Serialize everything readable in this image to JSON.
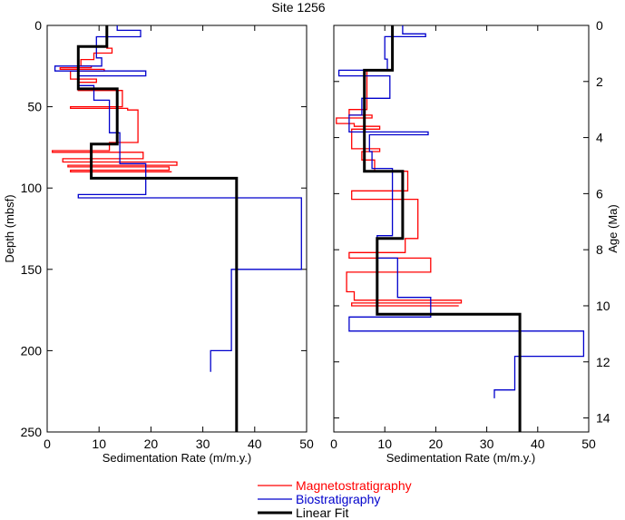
{
  "title": "Site 1256",
  "legend": [
    {
      "label": "Magnetostratigraphy",
      "color": "#ff0000"
    },
    {
      "label": "Biostratigraphy",
      "color": "#0000cc"
    },
    {
      "label": "Linear Fit",
      "color": "#000000"
    }
  ],
  "chart_data": [
    {
      "type": "line",
      "xlabel": "Sedimentation Rate (m/m.y.)",
      "ylabel": "Depth (mbsf)",
      "xlim": [
        0,
        50
      ],
      "ylim": [
        0,
        250
      ],
      "y_inverted": true,
      "xticks": [
        0,
        10,
        20,
        30,
        40,
        50
      ],
      "yticks": [
        0,
        50,
        100,
        150,
        200,
        250
      ],
      "series": [
        {
          "name": "Magnetostratigraphy",
          "color": "#ff0000",
          "points": [
            [
              11.5,
              0
            ],
            [
              11.5,
              14
            ],
            [
              12.5,
              14
            ],
            [
              12.5,
              17
            ],
            [
              9,
              17
            ],
            [
              9,
              21
            ],
            [
              6.5,
              21
            ],
            [
              6.5,
              25
            ],
            [
              8.5,
              25
            ],
            [
              8.5,
              26
            ],
            [
              2.5,
              26
            ],
            [
              2.5,
              27
            ],
            [
              11,
              27
            ],
            [
              11,
              28
            ],
            [
              4.5,
              28
            ],
            [
              4.5,
              33
            ],
            [
              9.5,
              33
            ],
            [
              9.5,
              35
            ],
            [
              6,
              35
            ],
            [
              6,
              40
            ],
            [
              14.5,
              40
            ],
            [
              14.5,
              50
            ],
            [
              4.5,
              50
            ],
            [
              4.5,
              51
            ],
            [
              15.5,
              51
            ],
            [
              15.5,
              52
            ],
            [
              17.5,
              52
            ],
            [
              17.5,
              72
            ],
            [
              12,
              72
            ],
            [
              12,
              77
            ],
            [
              1,
              77
            ],
            [
              1,
              78
            ],
            [
              18.5,
              78
            ],
            [
              18.5,
              82
            ],
            [
              3,
              82
            ],
            [
              3,
              84
            ],
            [
              25,
              84
            ],
            [
              25,
              86
            ],
            [
              4,
              86
            ],
            [
              4,
              87
            ],
            [
              23.5,
              87
            ],
            [
              23.5,
              89
            ],
            [
              4.5,
              89
            ],
            [
              4.5,
              90
            ],
            [
              24,
              90
            ]
          ]
        },
        {
          "name": "Biostratigraphy",
          "color": "#0000cc",
          "points": [
            [
              13.5,
              0
            ],
            [
              13.5,
              3
            ],
            [
              18,
              3
            ],
            [
              18,
              7
            ],
            [
              9.5,
              7
            ],
            [
              9.5,
              20
            ],
            [
              10.5,
              20
            ],
            [
              10.5,
              25
            ],
            [
              1.5,
              25
            ],
            [
              1.5,
              28
            ],
            [
              19,
              28
            ],
            [
              19,
              31
            ],
            [
              6,
              31
            ],
            [
              6,
              37
            ],
            [
              9,
              37
            ],
            [
              9,
              46
            ],
            [
              12,
              46
            ],
            [
              12,
              66
            ],
            [
              14,
              66
            ],
            [
              14,
              85
            ],
            [
              19,
              85
            ],
            [
              19,
              104
            ],
            [
              6,
              104
            ],
            [
              6,
              106
            ],
            [
              49,
              106
            ],
            [
              49,
              150
            ],
            [
              35.5,
              150
            ],
            [
              35.5,
              200
            ],
            [
              31.5,
              200
            ],
            [
              31.5,
              213
            ]
          ]
        },
        {
          "name": "Linear Fit",
          "color": "#000000",
          "points": [
            [
              11.5,
              0
            ],
            [
              11.5,
              13
            ],
            [
              6,
              13
            ],
            [
              6,
              39
            ],
            [
              13.5,
              39
            ],
            [
              13.5,
              73
            ],
            [
              8.5,
              73
            ],
            [
              8.5,
              94
            ],
            [
              36.5,
              94
            ],
            [
              36.5,
              250
            ]
          ]
        }
      ]
    },
    {
      "type": "line",
      "xlabel": "Sedimentation Rate (m/m.y.)",
      "ylabel": "Age (Ma)",
      "xlim": [
        0,
        50
      ],
      "ylim": [
        0,
        14.5
      ],
      "y_inverted": true,
      "xticks": [
        0,
        10,
        20,
        30,
        40,
        50
      ],
      "yticks": [
        0,
        2,
        4,
        6,
        8,
        10,
        12,
        14
      ],
      "series": [
        {
          "name": "Magnetostratigraphy",
          "color": "#ff0000",
          "points": [
            [
              11.5,
              0
            ],
            [
              11.5,
              1.6
            ],
            [
              6.5,
              1.6
            ],
            [
              6.5,
              3
            ],
            [
              3,
              3
            ],
            [
              3,
              3.2
            ],
            [
              7.5,
              3.2
            ],
            [
              7.5,
              3.3
            ],
            [
              0.5,
              3.3
            ],
            [
              0.5,
              3.5
            ],
            [
              4,
              3.5
            ],
            [
              4,
              3.6
            ],
            [
              9,
              3.6
            ],
            [
              9,
              3.7
            ],
            [
              3.5,
              3.7
            ],
            [
              3.5,
              4.4
            ],
            [
              9,
              4.4
            ],
            [
              9,
              4.5
            ],
            [
              5.5,
              4.5
            ],
            [
              5.5,
              4.8
            ],
            [
              8,
              4.8
            ],
            [
              8,
              5.2
            ],
            [
              14.5,
              5.2
            ],
            [
              14.5,
              5.9
            ],
            [
              3.5,
              5.9
            ],
            [
              3.5,
              6.2
            ],
            [
              16.5,
              6.2
            ],
            [
              16.5,
              7.6
            ],
            [
              14,
              7.6
            ],
            [
              14,
              8.1
            ],
            [
              3,
              8.1
            ],
            [
              3,
              8.3
            ],
            [
              19,
              8.3
            ],
            [
              19,
              8.8
            ],
            [
              2.5,
              8.8
            ],
            [
              2.5,
              9.5
            ],
            [
              4,
              9.5
            ],
            [
              4,
              9.8
            ],
            [
              25,
              9.8
            ],
            [
              25,
              9.9
            ],
            [
              3.5,
              9.9
            ],
            [
              3.5,
              10.0
            ],
            [
              24.5,
              10.0
            ]
          ]
        },
        {
          "name": "Biostratigraphy",
          "color": "#0000cc",
          "points": [
            [
              13.5,
              0
            ],
            [
              13.5,
              0.3
            ],
            [
              18,
              0.3
            ],
            [
              18,
              0.4
            ],
            [
              10,
              0.4
            ],
            [
              10,
              1.2
            ],
            [
              10.5,
              1.2
            ],
            [
              10.5,
              1.6
            ],
            [
              1,
              1.6
            ],
            [
              1,
              1.8
            ],
            [
              11,
              1.8
            ],
            [
              11,
              2.6
            ],
            [
              5.5,
              2.6
            ],
            [
              5.5,
              3.2
            ],
            [
              3,
              3.2
            ],
            [
              3,
              3.8
            ],
            [
              18.5,
              3.8
            ],
            [
              18.5,
              3.9
            ],
            [
              7,
              3.9
            ],
            [
              7,
              4.5
            ],
            [
              7.5,
              4.5
            ],
            [
              7.5,
              5.1
            ],
            [
              11.5,
              5.1
            ],
            [
              11.5,
              7.5
            ],
            [
              8.5,
              7.5
            ],
            [
              8.5,
              8.3
            ],
            [
              12.5,
              8.3
            ],
            [
              12.5,
              9.7
            ],
            [
              19,
              9.7
            ],
            [
              19,
              10.4
            ],
            [
              3,
              10.4
            ],
            [
              3,
              10.9
            ],
            [
              49,
              10.9
            ],
            [
              49,
              11.8
            ],
            [
              35.5,
              11.8
            ],
            [
              35.5,
              13
            ],
            [
              31.5,
              13
            ],
            [
              31.5,
              13.3
            ]
          ]
        },
        {
          "name": "Linear Fit",
          "color": "#000000",
          "points": [
            [
              11.5,
              0
            ],
            [
              11.5,
              1.6
            ],
            [
              6,
              1.6
            ],
            [
              6,
              5.2
            ],
            [
              13.5,
              5.2
            ],
            [
              13.5,
              7.6
            ],
            [
              8.5,
              7.6
            ],
            [
              8.5,
              10.3
            ],
            [
              36.5,
              10.3
            ],
            [
              36.5,
              14.5
            ]
          ]
        }
      ]
    }
  ]
}
